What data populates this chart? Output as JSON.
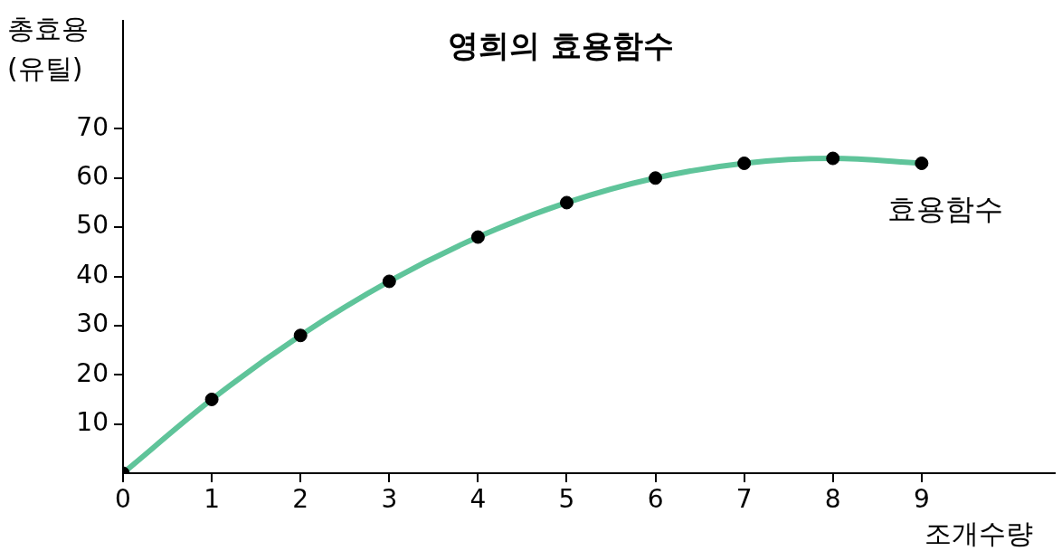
{
  "chart_data": {
    "type": "line",
    "title": "영희의 효용함수",
    "xlabel": "조개수량",
    "ylabel": "총효용 (유틸)",
    "x": [
      0,
      1,
      2,
      3,
      4,
      5,
      6,
      7,
      8,
      9
    ],
    "series": [
      {
        "name": "효용함수",
        "color": "#5fc49a",
        "marker": "none",
        "values": [
          0,
          15,
          28,
          39,
          48,
          55,
          60,
          63,
          64,
          63
        ]
      },
      {
        "type": "scatter",
        "color": "#000000",
        "marker": "circle",
        "values": [
          0,
          15,
          28,
          39,
          48,
          55,
          60,
          63,
          64,
          63
        ]
      }
    ],
    "xlim": [
      0,
      10.5
    ],
    "xticks": [
      0,
      1,
      2,
      3,
      4,
      5,
      6,
      7,
      8,
      9
    ],
    "ylim": [
      0,
      92
    ],
    "yticks": [
      10,
      20,
      30,
      40,
      50,
      60,
      70
    ],
    "grid": false,
    "legend": false
  }
}
